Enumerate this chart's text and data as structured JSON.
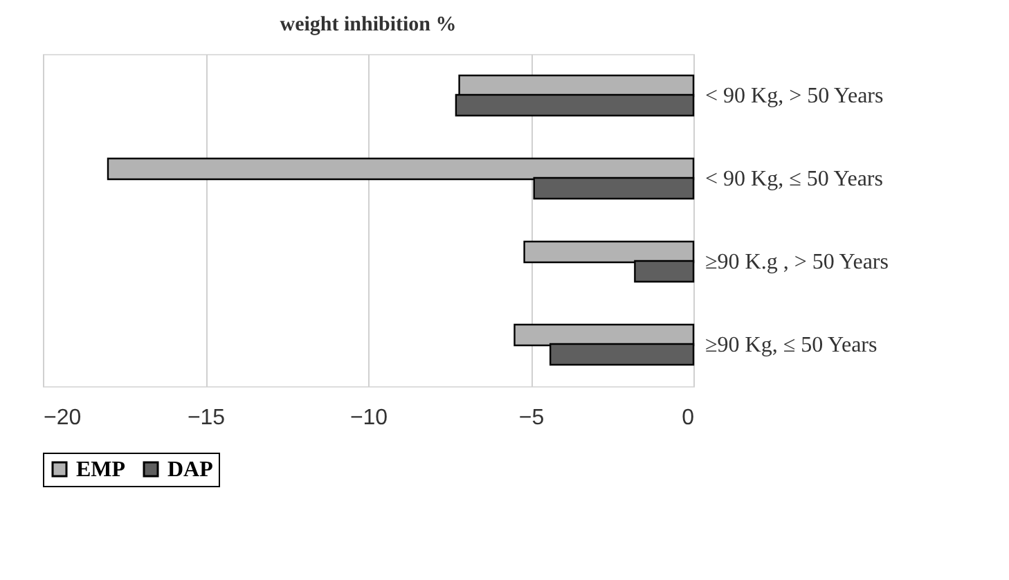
{
  "chart_data": {
    "type": "bar",
    "orientation": "horizontal",
    "title": "weight inhibition %",
    "categories": [
      "< 90 Kg,  > 50 Years",
      "< 90 Kg,  ≤ 50 Years",
      "≥90 K.g ,  > 50 Years",
      "≥90 Kg,  ≤ 50 Years"
    ],
    "series": [
      {
        "name": "EMP",
        "color": "#b3b3b3",
        "values": [
          -7.2,
          -18.0,
          -5.2,
          -5.5
        ]
      },
      {
        "name": "DAP",
        "color": "#5f5f5f",
        "values": [
          -7.3,
          -4.9,
          -1.8,
          -4.4
        ]
      }
    ],
    "xlim": [
      -20,
      0
    ],
    "xticks": [
      -20,
      -15,
      -10,
      -5,
      0
    ],
    "grid": "x",
    "legend": "bottom"
  }
}
